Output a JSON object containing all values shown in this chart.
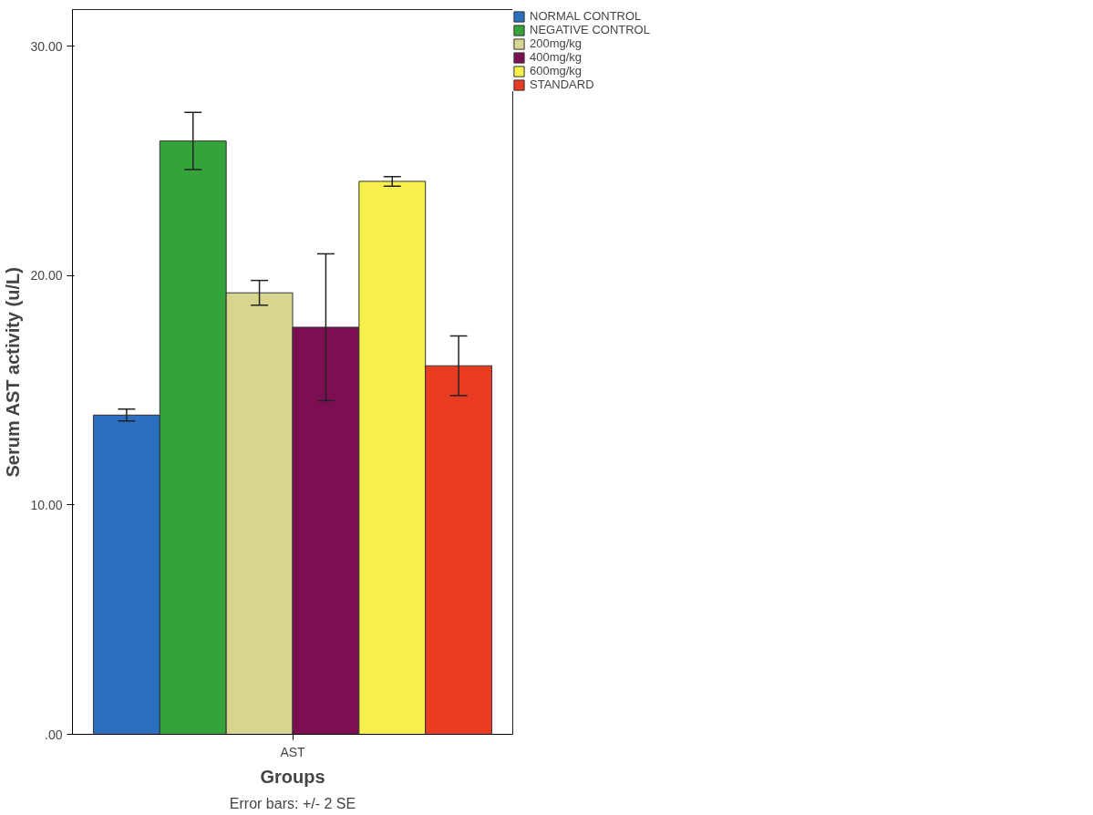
{
  "chart_data": {
    "type": "bar",
    "xlabel": "Groups",
    "ylabel": "Serum AST activity (u/L)",
    "categories": [
      "AST"
    ],
    "series": [
      {
        "name": "NORMAL CONTROL",
        "color": "#2a6fc0",
        "values": [
          13.92
        ],
        "errors": [
          0.26
        ]
      },
      {
        "name": "NEGATIVE CONTROL",
        "color": "#34a33a",
        "values": [
          25.87
        ],
        "errors": [
          1.25
        ]
      },
      {
        "name": "200mg/kg",
        "color": "#d8d58e",
        "values": [
          19.25
        ],
        "errors": [
          0.54
        ]
      },
      {
        "name": "400mg/kg",
        "color": "#7c0f52",
        "values": [
          17.75
        ],
        "errors": [
          3.2
        ]
      },
      {
        "name": "600mg/kg",
        "color": "#f7ef4a",
        "values": [
          24.11
        ],
        "errors": [
          0.21
        ]
      },
      {
        "name": "STANDARD",
        "color": "#e83b22",
        "values": [
          16.07
        ],
        "errors": [
          1.3
        ]
      }
    ],
    "ylim": [
      0,
      31.6
    ],
    "yticks": [
      {
        "value": 0,
        "label": ".00"
      },
      {
        "value": 10,
        "label": "10.00"
      },
      {
        "value": 20,
        "label": "20.00"
      },
      {
        "value": 30,
        "label": "30.00"
      }
    ],
    "grid": false,
    "legend": "top right",
    "annotations": [
      "Error bars: +/- 2 SE"
    ]
  }
}
